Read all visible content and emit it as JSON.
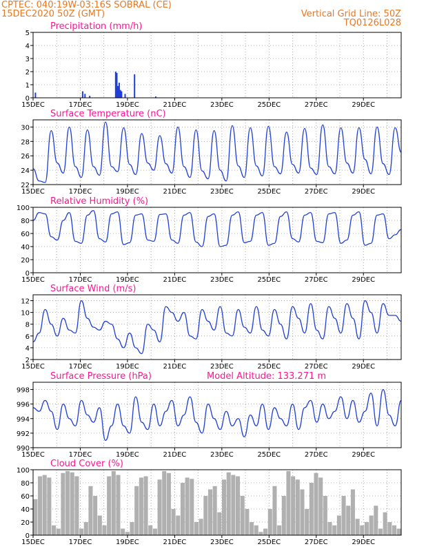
{
  "header": {
    "line1": "CPTEC:  040:19W-03:16S  SOBRAL (CE)",
    "line2": "15DEC2020 50Z (GMT)",
    "right1": "Vertical Grid Line: 50Z",
    "right2": "TQ0126L028"
  },
  "colors": {
    "accent": "#e87722",
    "title": "#ff1493",
    "series": "#1f3fd6",
    "cloud": "#b0b0b0"
  },
  "chart_data": [
    {
      "type": "bar",
      "title": "Precipitation (mm/h)",
      "ylim": [
        0,
        5
      ],
      "yticks": [
        0,
        1,
        2,
        3,
        4,
        5
      ],
      "xticks": [
        "15DEC",
        "17DEC",
        "19DEC",
        "21DEC",
        "23DEC",
        "25DEC",
        "27DEC",
        "29DEC"
      ],
      "x": [
        0.1,
        2.1,
        2.2,
        2.4,
        3.5,
        3.55,
        3.6,
        3.65,
        3.7,
        3.75,
        3.9,
        4.3,
        5.2
      ],
      "values": [
        0.4,
        0.5,
        0.3,
        0.15,
        2.0,
        1.9,
        0.9,
        1.15,
        0.6,
        0.5,
        0.3,
        1.8,
        0.1
      ]
    },
    {
      "type": "line",
      "title": "Surface Temperature (nC)",
      "ylim": [
        22,
        31
      ],
      "yticks": [
        22,
        24,
        26,
        28,
        30
      ],
      "xticks": [
        "15DEC",
        "17DEC",
        "19DEC",
        "21DEC",
        "23DEC",
        "25DEC",
        "27DEC",
        "29DEC"
      ],
      "series": [
        {
          "values": [
            24.2,
            22.5,
            22.3,
            29.5,
            25.0,
            23.6,
            30.0,
            24.5,
            23.0,
            29.6,
            24.5,
            23.3,
            30.7,
            24.5,
            23.8,
            29.9,
            24.8,
            23.4,
            29.1,
            25.0,
            24.0,
            28.8,
            24.9,
            23.6,
            30.0,
            24.5,
            23.0,
            29.6,
            23.9,
            22.8,
            29.5,
            24.0,
            22.5,
            30.2,
            24.6,
            23.0,
            29.9,
            24.6,
            23.2,
            30.1,
            24.5,
            23.5,
            29.3,
            24.8,
            23.6,
            29.8,
            24.3,
            23.4,
            30.3,
            24.5,
            23.5,
            29.9,
            25.0,
            23.6,
            29.9,
            25.5,
            23.5,
            30.0,
            24.9,
            23.4,
            29.9,
            26.5
          ]
        }
      ]
    },
    {
      "type": "line",
      "title": "Relative Humidity (%)",
      "ylim": [
        0,
        100
      ],
      "yticks": [
        0,
        20,
        40,
        60,
        80,
        100
      ],
      "xticks": [
        "15DEC",
        "17DEC",
        "19DEC",
        "21DEC",
        "23DEC",
        "25DEC",
        "27DEC",
        "29DEC"
      ],
      "series": [
        {
          "values": [
            80,
            92,
            90,
            55,
            50,
            80,
            92,
            48,
            45,
            88,
            95,
            52,
            47,
            90,
            93,
            43,
            46,
            88,
            90,
            50,
            48,
            89,
            90,
            50,
            45,
            88,
            92,
            47,
            40,
            86,
            90,
            40,
            42,
            88,
            93,
            46,
            48,
            88,
            92,
            42,
            45,
            86,
            93,
            52,
            47,
            88,
            92,
            48,
            46,
            90,
            92,
            45,
            50,
            88,
            93,
            42,
            45,
            88,
            90,
            52,
            58,
            66
          ]
        }
      ]
    },
    {
      "type": "line",
      "title": "Surface Wind (m/s)",
      "ylim": [
        2,
        13
      ],
      "yticks": [
        2,
        4,
        6,
        8,
        10,
        12
      ],
      "xticks": [
        "15DEC",
        "17DEC",
        "19DEC",
        "21DEC",
        "23DEC",
        "25DEC",
        "27DEC",
        "29DEC"
      ],
      "series": [
        {
          "values": [
            5.0,
            6.5,
            10.5,
            8.0,
            6.0,
            9.0,
            7.0,
            6.5,
            12.0,
            9.0,
            7.5,
            7.0,
            8.5,
            8.0,
            5.5,
            4.0,
            6.5,
            4.0,
            3.0,
            8.0,
            7.0,
            5.0,
            11.0,
            10.0,
            8.5,
            10.0,
            6.0,
            5.5,
            10.5,
            8.5,
            7.0,
            11.0,
            6.5,
            6.0,
            10.5,
            7.5,
            6.5,
            11.0,
            7.0,
            6.0,
            10.5,
            8.0,
            5.5,
            11.0,
            9.0,
            6.5,
            11.5,
            7.0,
            5.5,
            11.0,
            9.0,
            6.5,
            11.5,
            9.0,
            5.5,
            12.0,
            10.0,
            6.5,
            11.5,
            9.5,
            9.5,
            8.5
          ]
        }
      ]
    },
    {
      "type": "line",
      "title": "Surface Pressure (hPa)",
      "annotation": "Model Altitude: 133.271  m",
      "ylim": [
        990,
        999
      ],
      "yticks": [
        990,
        992,
        994,
        996,
        998
      ],
      "xticks": [
        "15DEC",
        "17DEC",
        "19DEC",
        "21DEC",
        "23DEC",
        "25DEC",
        "27DEC",
        "29DEC"
      ],
      "series": [
        {
          "values": [
            995.5,
            995.0,
            996.5,
            995.0,
            992.5,
            996.0,
            994.0,
            993.0,
            996.5,
            994.5,
            993.5,
            995.5,
            991.0,
            993.0,
            996.0,
            993.0,
            992.0,
            997.0,
            993.5,
            992.5,
            996.0,
            993.0,
            995.0,
            996.5,
            993.0,
            994.5,
            997.0,
            993.5,
            992.0,
            996.0,
            994.0,
            992.5,
            995.0,
            993.0,
            994.0,
            991.5,
            994.5,
            993.0,
            996.0,
            992.5,
            995.5,
            994.0,
            993.0,
            996.0,
            992.5,
            995.5,
            996.5,
            993.5,
            996.0,
            994.0,
            995.0,
            997.0,
            994.0,
            996.5,
            993.5,
            995.0,
            997.5,
            993.0,
            998.0,
            994.5,
            993.0,
            996.5
          ]
        }
      ]
    },
    {
      "type": "bar",
      "title": "Cloud Cover (%)",
      "ylim": [
        0,
        100
      ],
      "yticks": [
        0,
        20,
        40,
        60,
        80,
        100
      ],
      "xticks": [
        "15DEC",
        "17DEC",
        "19DEC",
        "21DEC",
        "23DEC",
        "25DEC",
        "27DEC",
        "29DEC"
      ],
      "values": [
        55,
        90,
        92,
        88,
        15,
        10,
        95,
        98,
        96,
        90,
        10,
        20,
        75,
        60,
        30,
        15,
        90,
        98,
        92,
        10,
        5,
        20,
        75,
        88,
        90,
        15,
        10,
        85,
        98,
        95,
        40,
        30,
        80,
        88,
        86,
        20,
        25,
        60,
        70,
        75,
        35,
        85,
        96,
        92,
        90,
        60,
        40,
        20,
        15,
        5,
        10,
        40,
        75,
        15,
        60,
        98,
        90,
        85,
        70,
        40,
        80,
        95,
        88,
        60,
        20,
        15,
        30,
        60,
        45,
        70,
        25,
        15,
        20,
        30,
        45,
        10,
        35,
        20,
        15,
        10
      ]
    }
  ]
}
